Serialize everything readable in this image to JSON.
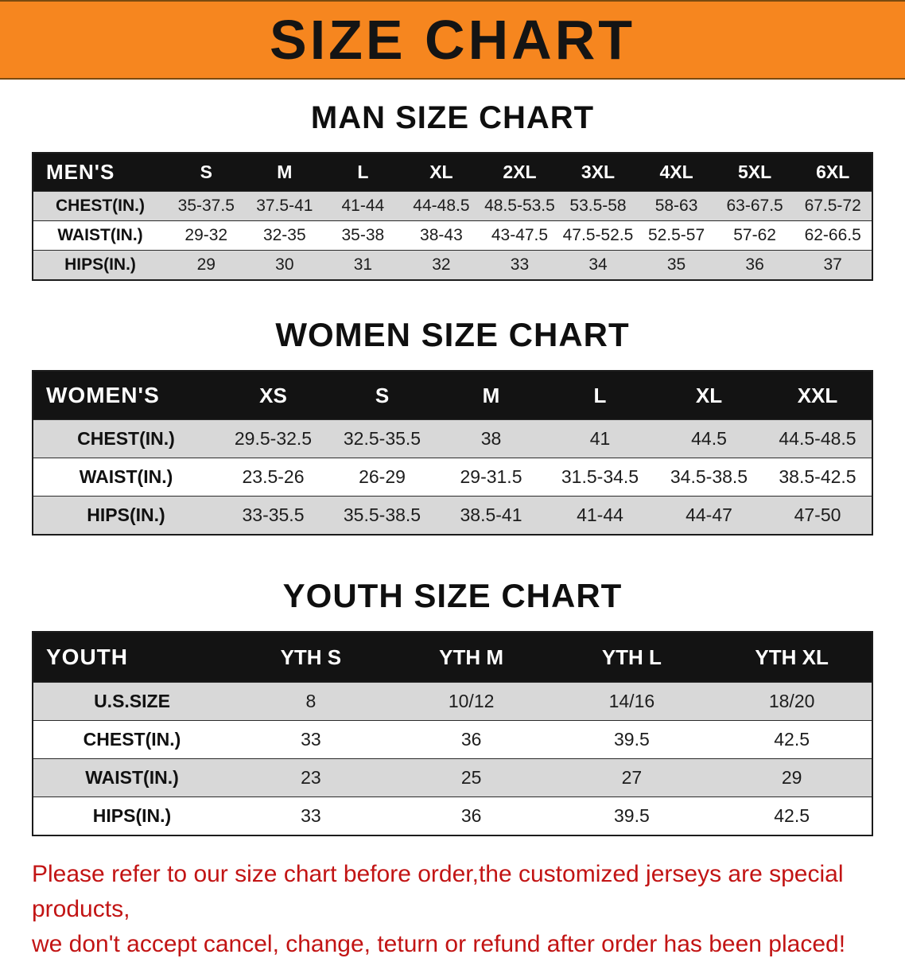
{
  "banner": {
    "title": "SIZE CHART"
  },
  "colors": {
    "banner_bg": "#F6861F",
    "table_header_bg": "#131313",
    "row_alt": "#D8D8D8",
    "disclaimer_text": "#C21414"
  },
  "sections": {
    "men": {
      "heading": "MAN SIZE CHART",
      "table": {
        "header": [
          "MEN'S",
          "S",
          "M",
          "L",
          "XL",
          "2XL",
          "3XL",
          "4XL",
          "5XL",
          "6XL"
        ],
        "rows": [
          [
            "CHEST(IN.)",
            "35-37.5",
            "37.5-41",
            "41-44",
            "44-48.5",
            "48.5-53.5",
            "53.5-58",
            "58-63",
            "63-67.5",
            "67.5-72"
          ],
          [
            "WAIST(IN.)",
            "29-32",
            "32-35",
            "35-38",
            "38-43",
            "43-47.5",
            "47.5-52.5",
            "52.5-57",
            "57-62",
            "62-66.5"
          ],
          [
            "HIPS(IN.)",
            "29",
            "30",
            "31",
            "32",
            "33",
            "34",
            "35",
            "36",
            "37"
          ]
        ]
      }
    },
    "women": {
      "heading": "WOMEN SIZE CHART",
      "table": {
        "header": [
          "WOMEN'S",
          "XS",
          "S",
          "M",
          "L",
          "XL",
          "XXL"
        ],
        "rows": [
          [
            "CHEST(IN.)",
            "29.5-32.5",
            "32.5-35.5",
            "38",
            "41",
            "44.5",
            "44.5-48.5"
          ],
          [
            "WAIST(IN.)",
            "23.5-26",
            "26-29",
            "29-31.5",
            "31.5-34.5",
            "34.5-38.5",
            "38.5-42.5"
          ],
          [
            "HIPS(IN.)",
            "33-35.5",
            "35.5-38.5",
            "38.5-41",
            "41-44",
            "44-47",
            "47-50"
          ]
        ]
      }
    },
    "youth": {
      "heading": "YOUTH SIZE CHART",
      "table": {
        "header": [
          "YOUTH",
          "YTH S",
          "YTH M",
          "YTH L",
          "YTH XL"
        ],
        "rows": [
          [
            "U.S.SIZE",
            "8",
            "10/12",
            "14/16",
            "18/20"
          ],
          [
            "CHEST(IN.)",
            "33",
            "36",
            "39.5",
            "42.5"
          ],
          [
            "WAIST(IN.)",
            "23",
            "25",
            "27",
            "29"
          ],
          [
            "HIPS(IN.)",
            "33",
            "36",
            "39.5",
            "42.5"
          ]
        ]
      }
    }
  },
  "disclaimer": {
    "line1": "Please refer to our size chart before order,the customized jerseys are special products,",
    "line2": "we don't accept cancel, change, teturn or refund after order has been placed!"
  }
}
